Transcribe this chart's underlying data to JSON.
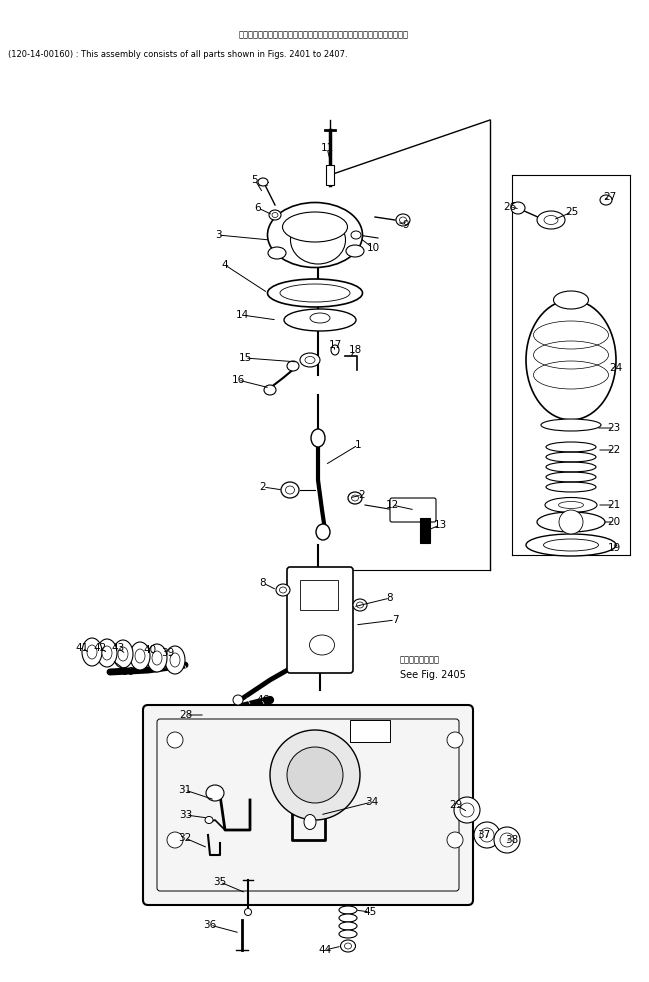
{
  "title_jp": "このアセンブリの構成部品は第２４．１図から第２４．７図まで含みます．",
  "title_en": "(120-14-00160) : This assembly consists of all parts shown in Figs. 2401 to 2407.",
  "note_jp": "第２４０５図参照",
  "note_en": "See Fig. 2405",
  "bg_color": "#ffffff",
  "line_color": "#000000",
  "fig_width": 6.49,
  "fig_height": 9.82,
  "dpi": 100
}
